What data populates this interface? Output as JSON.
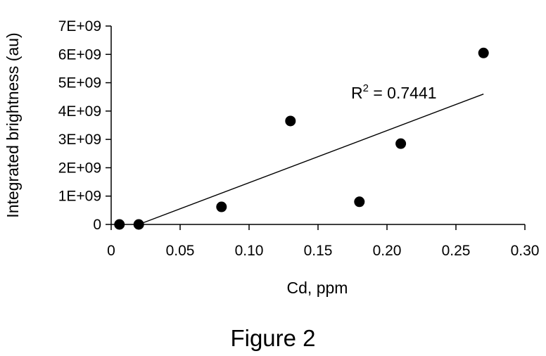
{
  "chart_data": {
    "type": "scatter",
    "xlabel": "Cd, ppm",
    "ylabel": "Integrated brightness (au)",
    "xlim": [
      0,
      0.3
    ],
    "ylim": [
      0,
      7000000000
    ],
    "x_ticks": [
      "0",
      "0.05",
      "0.10",
      "0.15",
      "0.20",
      "0.25",
      "0.30"
    ],
    "y_ticks": [
      "0",
      "1E+09",
      "2E+09",
      "3E+09",
      "4E+09",
      "5E+09",
      "6E+09",
      "7E+09"
    ],
    "points": [
      {
        "x": 0.006,
        "y": 0
      },
      {
        "x": 0.02,
        "y": 0
      },
      {
        "x": 0.08,
        "y": 620000000
      },
      {
        "x": 0.13,
        "y": 3650000000
      },
      {
        "x": 0.18,
        "y": 800000000
      },
      {
        "x": 0.21,
        "y": 2850000000
      },
      {
        "x": 0.27,
        "y": 6050000000
      }
    ],
    "trendline": {
      "x": [
        0.02,
        0.27
      ],
      "y": [
        0,
        4600000000
      ]
    },
    "annotation": {
      "base": "R",
      "sup": "2",
      "rest": " = 0.7441"
    },
    "grid": false,
    "legend": "none",
    "marker_color": "#000000"
  },
  "caption": "Figure 2"
}
